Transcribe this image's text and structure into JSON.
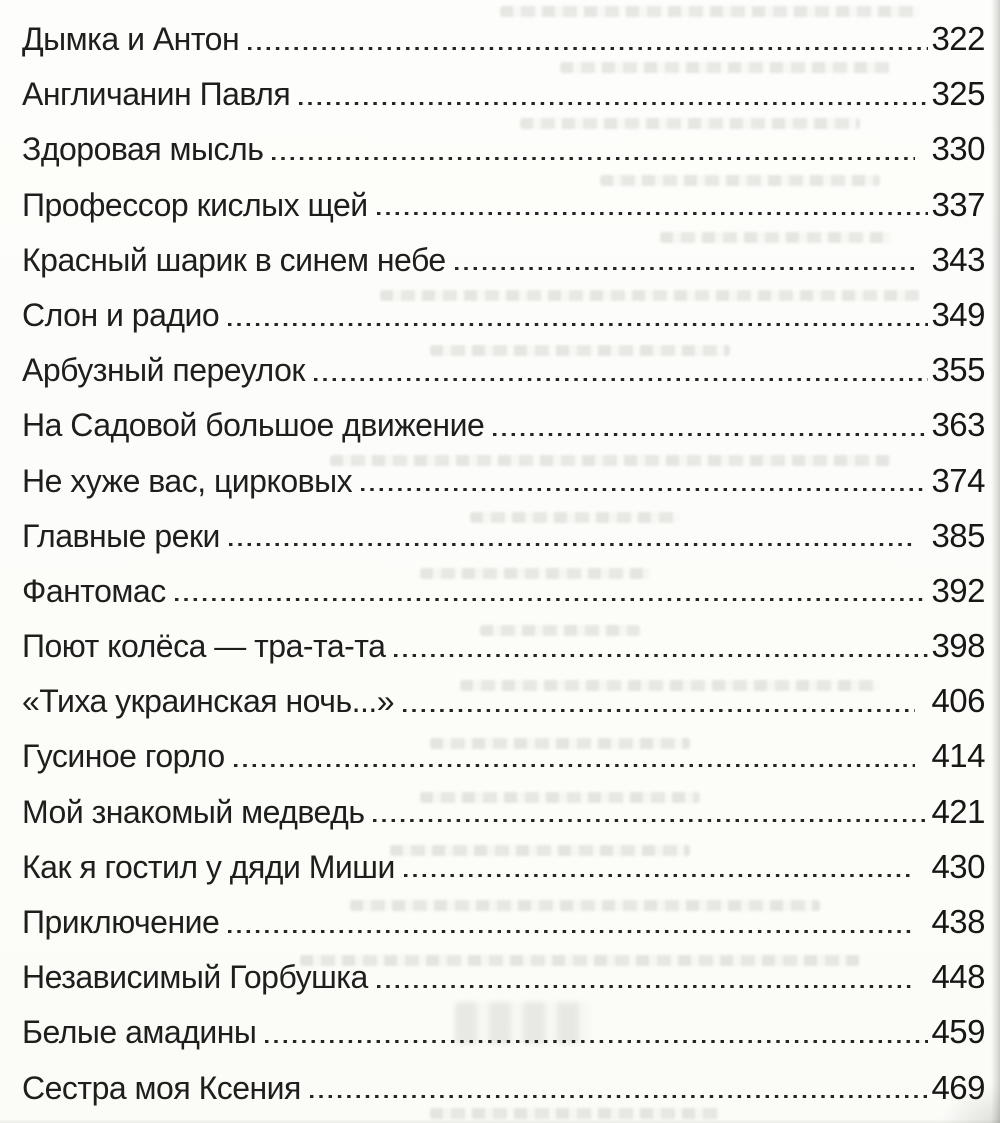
{
  "document": {
    "kind": "book-table-of-contents-scan",
    "language": "ru",
    "toc": {
      "entries": [
        {
          "title": "Дымка и Антон",
          "page": "322"
        },
        {
          "title": "Англичанин Павля",
          "page": "325"
        },
        {
          "title": "Здоровая мысль",
          "page": "330"
        },
        {
          "title": "Профессор кислых щей",
          "page": "337"
        },
        {
          "title": "Красный шарик в синем небе",
          "page": "343"
        },
        {
          "title": "Слон и радио",
          "page": "349"
        },
        {
          "title": "Арбузный переулок",
          "page": "355"
        },
        {
          "title": "На Садовой большое движение",
          "page": "363"
        },
        {
          "title": "Не хуже вас, цирковых",
          "page": "374"
        },
        {
          "title": "Главные реки",
          "page": "385"
        },
        {
          "title": "Фантомас",
          "page": "392"
        },
        {
          "title": "Поют колёса — тра-та-та",
          "page": "398"
        },
        {
          "title": "«Тиха украинская ночь...»",
          "page": "406"
        },
        {
          "title": "Гусиное горло",
          "page": "414"
        },
        {
          "title": "Мой знакомый медведь",
          "page": "421"
        },
        {
          "title": "Как я гостил у дяди Миши",
          "page": "430"
        },
        {
          "title": "Приключение",
          "page": "438"
        },
        {
          "title": "Независимый Горбушка",
          "page": "448"
        },
        {
          "title": "Белые амадины",
          "page": "459"
        },
        {
          "title": "Сестра моя Ксения",
          "page": "469"
        }
      ]
    },
    "colors": {
      "paper": "#fcfcf9",
      "ink": "#1e1e1c",
      "page_edge_shadow": "#b9b9b4"
    }
  }
}
